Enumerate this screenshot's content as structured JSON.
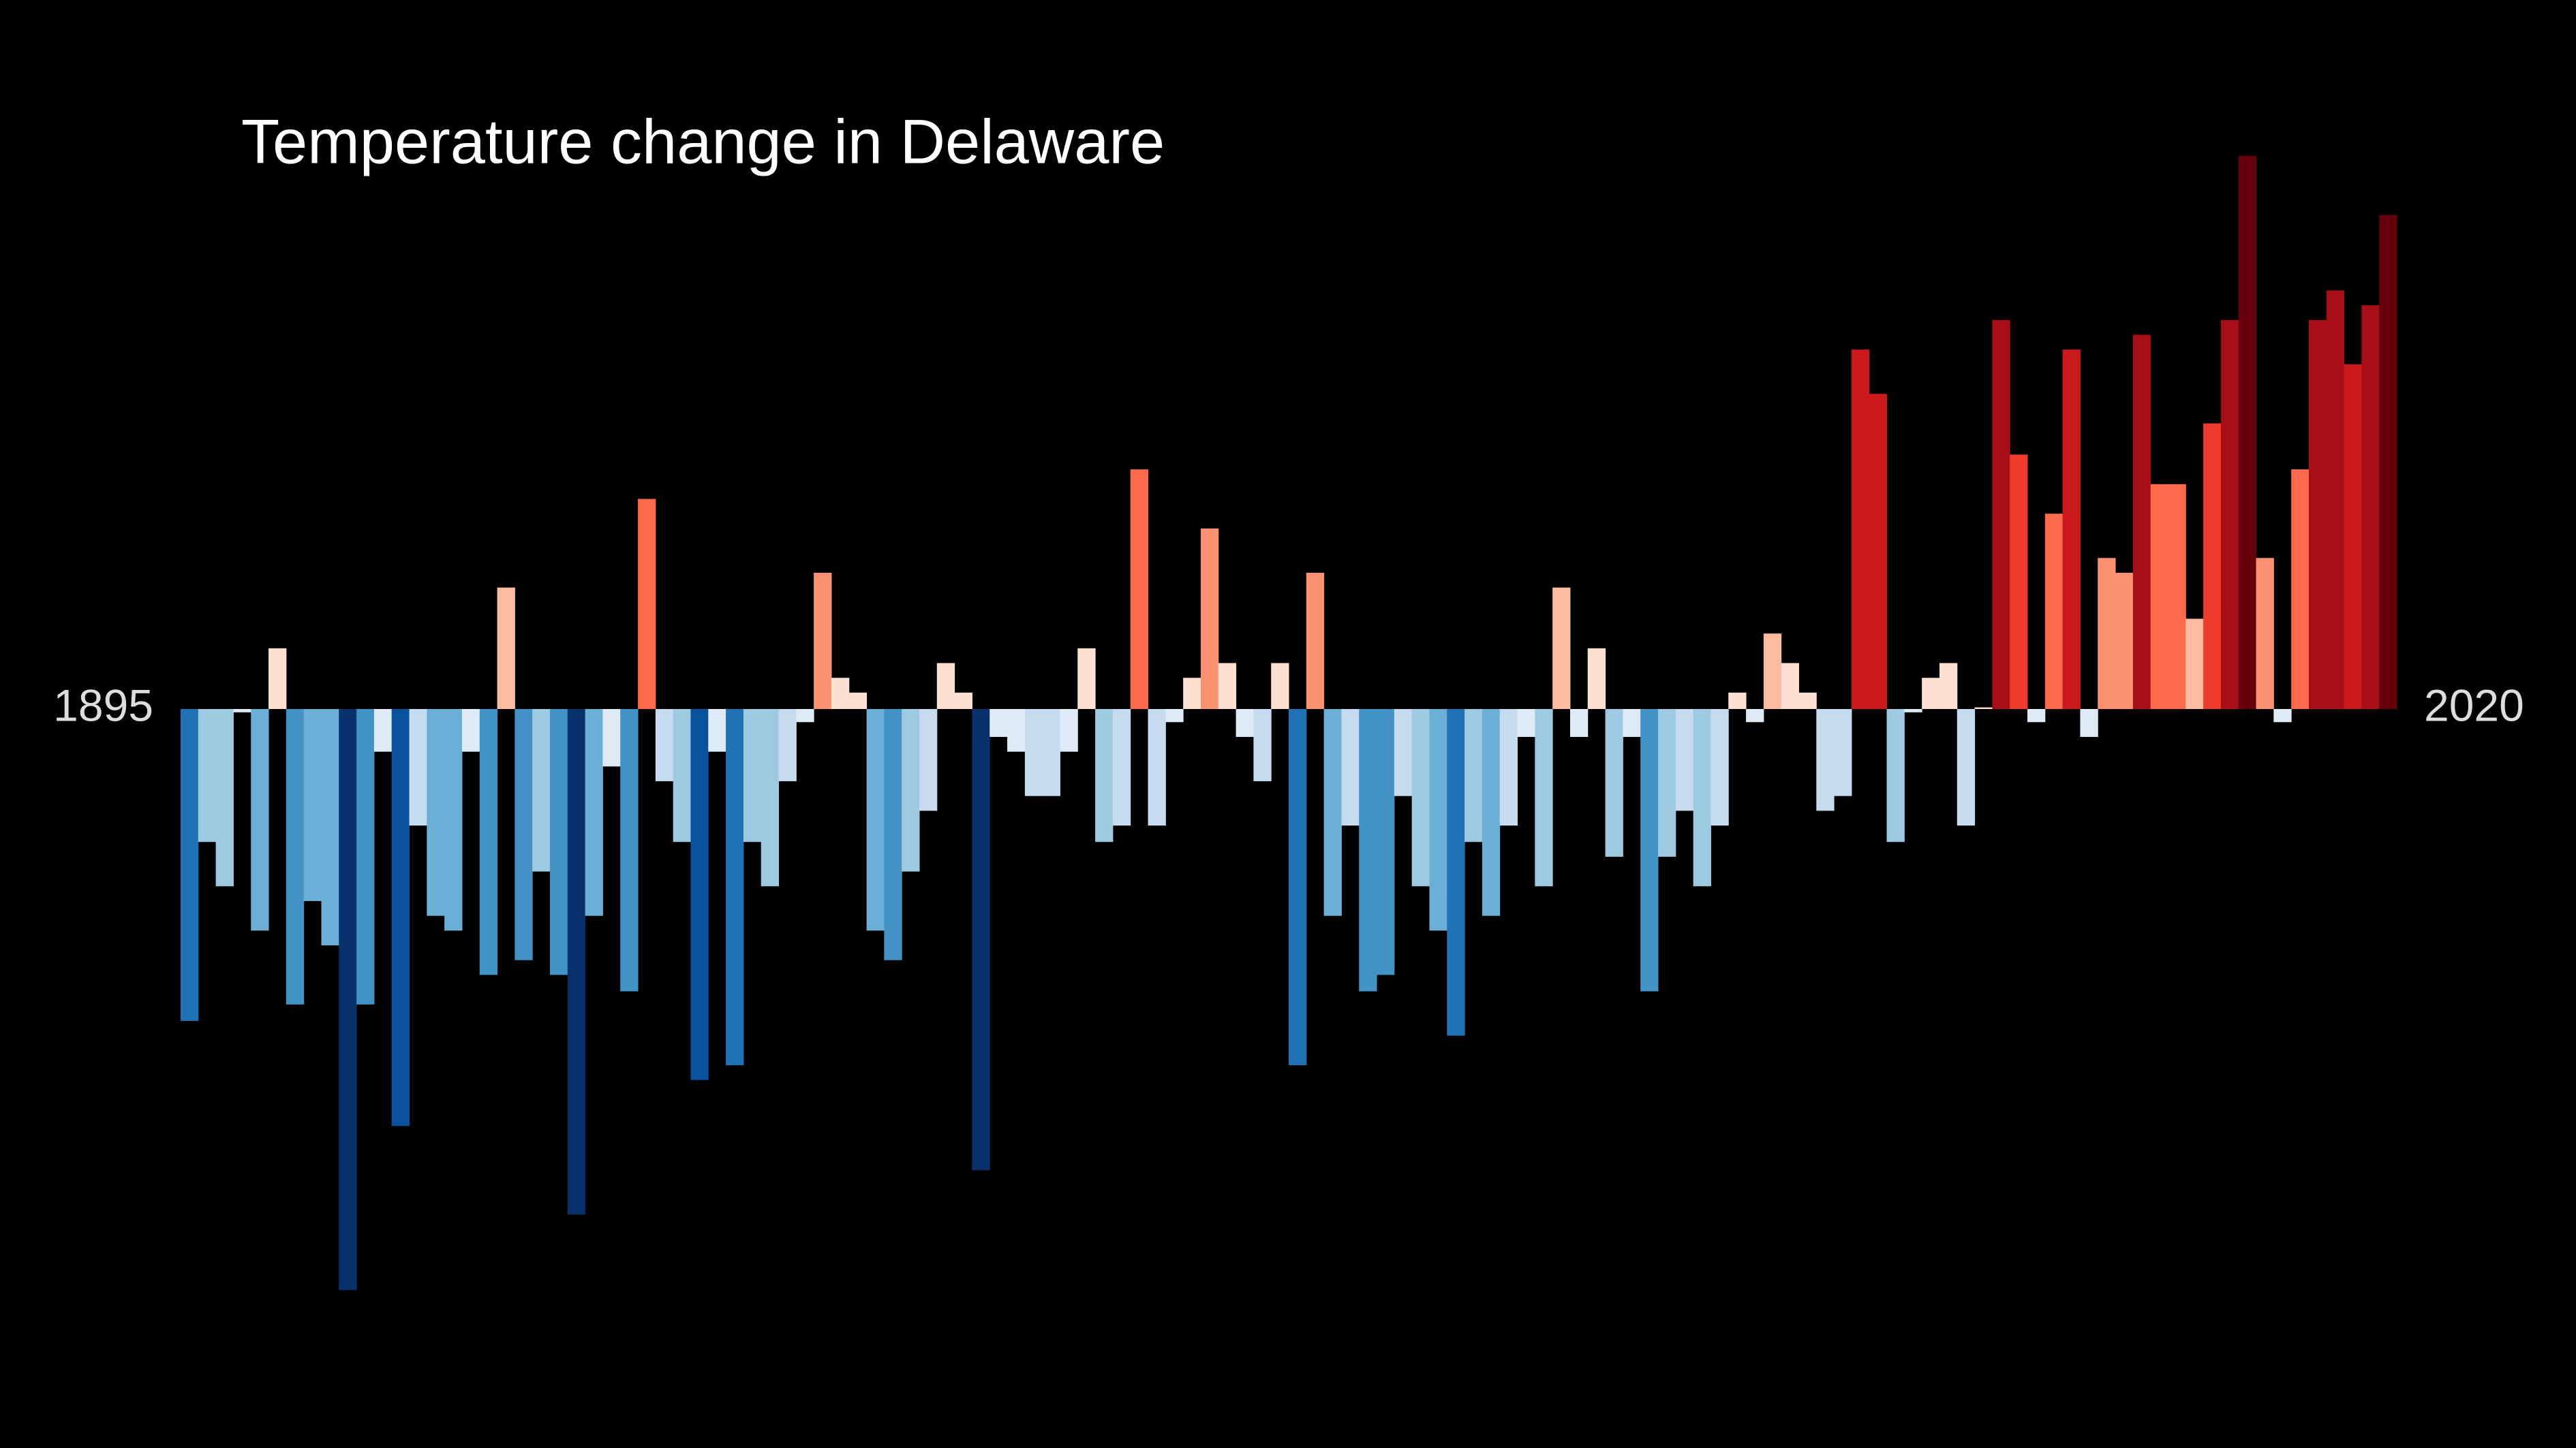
{
  "chart_data": {
    "type": "bar",
    "title": "Temperature change in Delaware",
    "x": [
      1895,
      1896,
      1897,
      1898,
      1899,
      1900,
      1901,
      1902,
      1903,
      1904,
      1905,
      1906,
      1907,
      1908,
      1909,
      1910,
      1911,
      1912,
      1913,
      1914,
      1915,
      1916,
      1917,
      1918,
      1919,
      1920,
      1921,
      1922,
      1923,
      1924,
      1925,
      1926,
      1927,
      1928,
      1929,
      1930,
      1931,
      1932,
      1933,
      1934,
      1935,
      1936,
      1937,
      1938,
      1939,
      1940,
      1941,
      1942,
      1943,
      1944,
      1945,
      1946,
      1947,
      1948,
      1949,
      1950,
      1951,
      1952,
      1953,
      1954,
      1955,
      1956,
      1957,
      1958,
      1959,
      1960,
      1961,
      1962,
      1963,
      1964,
      1965,
      1966,
      1967,
      1968,
      1969,
      1970,
      1971,
      1972,
      1973,
      1974,
      1975,
      1976,
      1977,
      1978,
      1979,
      1980,
      1981,
      1982,
      1983,
      1984,
      1985,
      1986,
      1987,
      1988,
      1989,
      1990,
      1991,
      1992,
      1993,
      1994,
      1995,
      1996,
      1997,
      1998,
      1999,
      2000,
      2001,
      2002,
      2003,
      2004,
      2005,
      2006,
      2007,
      2008,
      2009,
      2010,
      2011,
      2012,
      2013,
      2014,
      2015,
      2016,
      2017,
      2018,
      2019,
      2020
    ],
    "values": [
      -1.9,
      -0.81,
      -1.08,
      -0.02,
      -1.35,
      0.37,
      -1.8,
      -1.17,
      -1.44,
      -3.54,
      -1.8,
      -0.26,
      -2.54,
      -0.71,
      -1.26,
      -1.35,
      -0.26,
      -1.62,
      0.74,
      -1.53,
      -0.99,
      -1.62,
      -3.08,
      -1.26,
      -0.35,
      -1.72,
      1.28,
      -0.44,
      -0.81,
      -2.26,
      -0.26,
      -2.17,
      -0.81,
      -1.08,
      -0.44,
      -0.08,
      0.83,
      0.19,
      0.1,
      -1.35,
      -1.53,
      -0.99,
      -0.62,
      0.28,
      0.1,
      -2.81,
      -0.17,
      -0.26,
      -0.53,
      -0.53,
      -0.26,
      0.37,
      -0.81,
      -0.71,
      1.46,
      -0.71,
      -0.08,
      0.19,
      1.1,
      0.28,
      -0.17,
      -0.44,
      0.28,
      -2.17,
      0.83,
      -1.26,
      -0.71,
      -1.72,
      -1.62,
      -0.53,
      -1.08,
      -1.35,
      -1.99,
      -0.81,
      -1.26,
      -0.71,
      -0.17,
      -1.08,
      0.74,
      -0.17,
      0.37,
      -0.9,
      -0.17,
      -1.72,
      -0.9,
      -0.62,
      -1.08,
      -0.71,
      0.1,
      -0.08,
      0.46,
      0.28,
      0.1,
      -0.62,
      -0.53,
      2.19,
      1.92,
      -0.81,
      -0.02,
      0.19,
      0.28,
      -0.71,
      0.01,
      2.37,
      1.55,
      -0.08,
      1.19,
      2.19,
      -0.17,
      0.92,
      0.83,
      2.28,
      1.37,
      1.37,
      0.55,
      1.74,
      2.37,
      3.37,
      0.92,
      -0.08,
      1.46,
      2.37,
      2.55,
      2.1,
      2.46,
      3.01
    ],
    "colormap": [
      "#08306b",
      "#08519c",
      "#2171b5",
      "#4292c6",
      "#6baed6",
      "#9ecae1",
      "#c6dbef",
      "#deebf7",
      "#fee0d2",
      "#fcbba1",
      "#fc9272",
      "#fb6a4a",
      "#ef3b2c",
      "#cb181d",
      "#a50f15",
      "#67000d"
    ],
    "ylim": [
      -4,
      4
    ],
    "xticks": [
      1895,
      2020
    ]
  }
}
